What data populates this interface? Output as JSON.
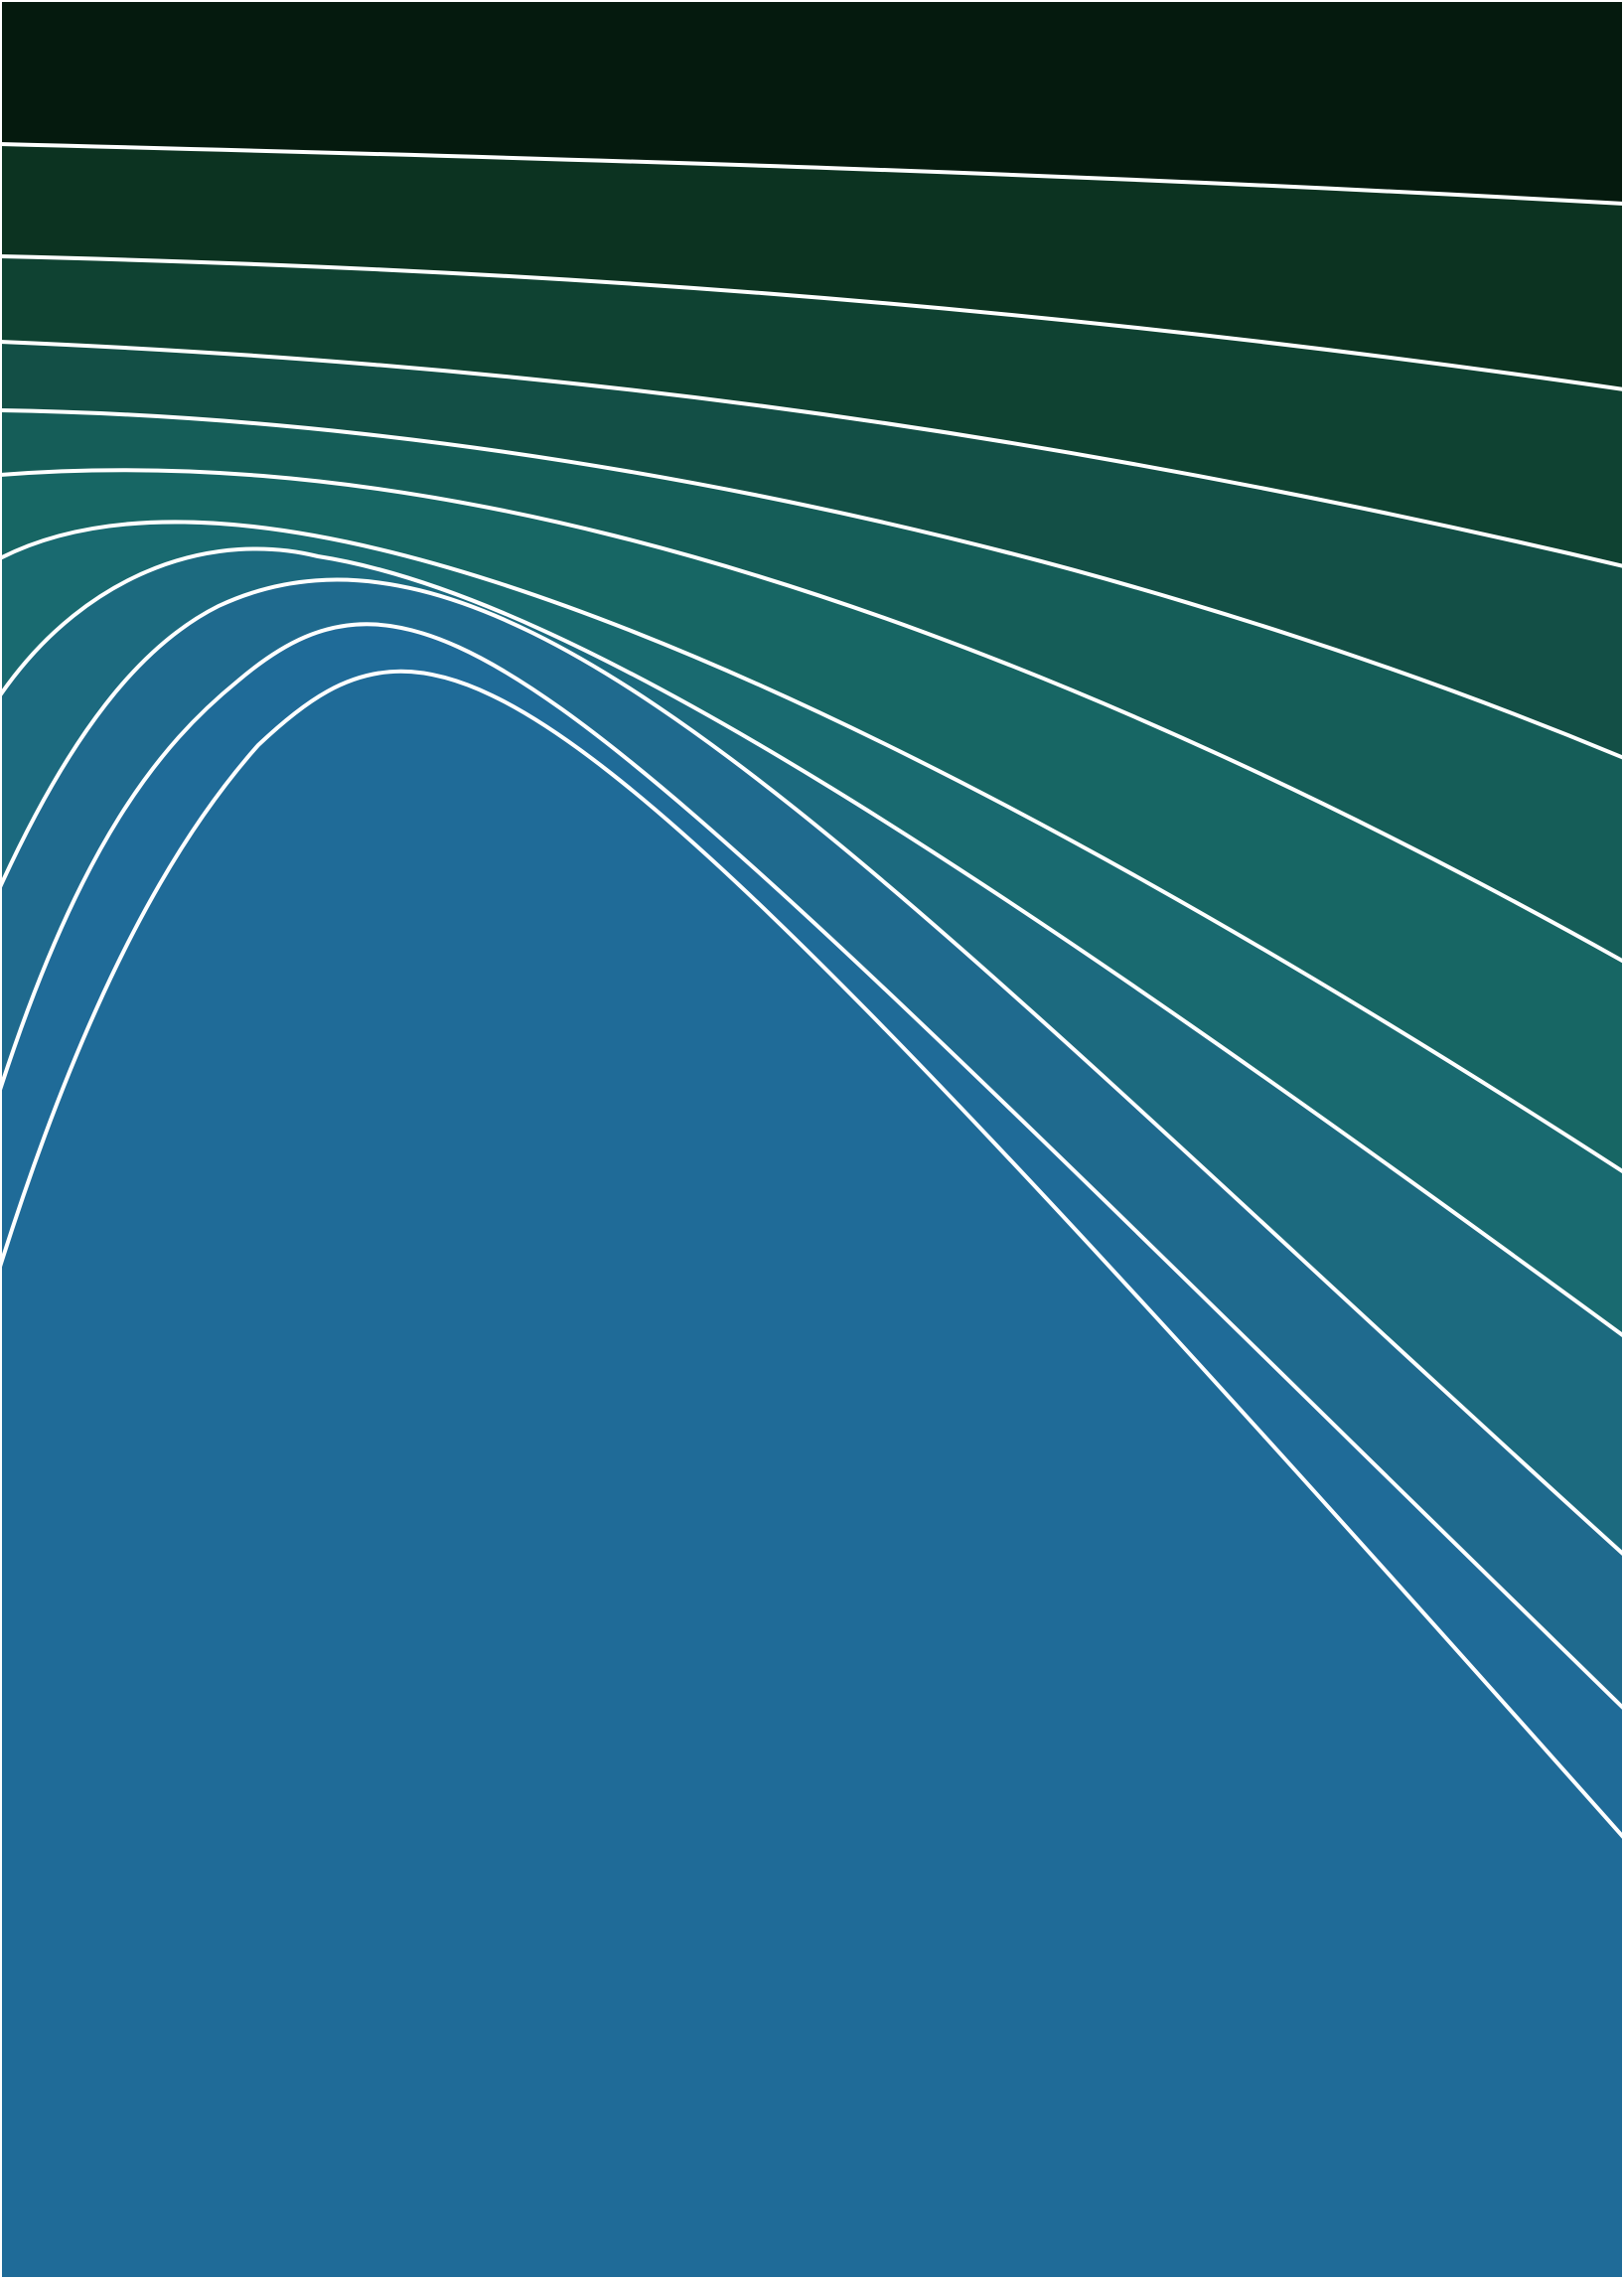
{
  "artwork": {
    "kind": "abstract contour-band poster",
    "band_colors": [
      "#051a0e",
      "#0a2717",
      "#0c3321",
      "#0f4232",
      "#134f46",
      "#155d58",
      "#176664",
      "#196a70",
      "#1c6a7f",
      "#1f6a8e",
      "#1f6b98"
    ],
    "line_color": "#ffffff",
    "background_color": "#1f6b98"
  }
}
